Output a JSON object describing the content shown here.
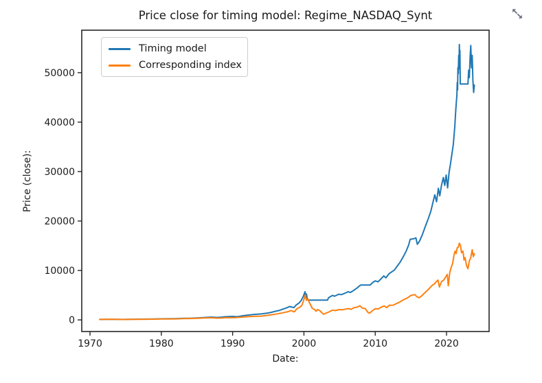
{
  "figure": {
    "title": "Price close for timing model: Regime_NASDAQ_Synt"
  },
  "icons": {
    "expand": "diagonal-resize-arrows"
  },
  "colors": {
    "timing_model": "#1f77b4",
    "corresponding_index": "#ff7f0e",
    "spine": "#262626",
    "text": "#1a1a1a",
    "legend_border": "#cccccc",
    "expand_icon": "#6b7280"
  },
  "chart_data": {
    "type": "line",
    "title": "Price close for timing model: Regime_NASDAQ_Synt",
    "xlabel": "Date:",
    "ylabel": "Price (close):",
    "grid": false,
    "legend_position": "upper left",
    "xlim": [
      1968.84,
      2025.97
    ],
    "ylim": [
      -2350,
      58590
    ],
    "x_ticks": [
      1970,
      1980,
      1990,
      2000,
      2010,
      2020
    ],
    "y_ticks": [
      0,
      10000,
      20000,
      30000,
      40000,
      50000
    ],
    "series": [
      {
        "name": "Timing model",
        "key": "timing-model-line",
        "color": "#1f77b4",
        "x": [
          1971.35,
          1972,
          1972.8,
          1973.5,
          1974.5,
          1975.2,
          1976,
          1977,
          1978,
          1979,
          1980,
          1981,
          1982,
          1983,
          1984,
          1985,
          1986,
          1987,
          1987.8,
          1988.5,
          1989,
          1990,
          1990.7,
          1991.5,
          1992,
          1993,
          1994,
          1995,
          1995.5,
          1996,
          1996.5,
          1997,
          1997.5,
          1998,
          1998.6,
          1998.9,
          1999.3,
          1999.6,
          1999.9,
          2000.05,
          2000.15,
          2000.25,
          2000.35,
          2000.45,
          2000.6,
          2003.3,
          2003.45,
          2003.7,
          2004,
          2004.3,
          2004.6,
          2004.9,
          2005.2,
          2005.5,
          2005.9,
          2006.2,
          2006.5,
          2006.9,
          2007.2,
          2007.5,
          2007.8,
          2008,
          2009.3,
          2009.6,
          2010,
          2010.4,
          2010.8,
          2011.2,
          2011.5,
          2011.9,
          2012.3,
          2012.7,
          2013.1,
          2013.5,
          2013.9,
          2014.3,
          2014.7,
          2014.9,
          2015.4,
          2015.7,
          2015.9,
          2016.2,
          2016.6,
          2017,
          2017.4,
          2017.8,
          2018.1,
          2018.35,
          2018.6,
          2018.85,
          2019.05,
          2019.3,
          2019.55,
          2019.75,
          2019.95,
          2020.15,
          2020.35,
          2020.55,
          2020.75,
          2020.95,
          2021.15,
          2021.3,
          2021.45,
          2021.5,
          2021.55,
          2021.6,
          2021.65,
          2021.7,
          2021.75,
          2021.8,
          2021.85,
          2021.88,
          2021.92,
          2023.0,
          2023.1,
          2023.2,
          2023.3,
          2023.4,
          2023.5,
          2023.6,
          2023.7,
          2023.8,
          2023.9
        ],
        "y": [
          100,
          115,
          125,
          110,
          100,
          115,
          135,
          145,
          165,
          190,
          220,
          235,
          255,
          320,
          335,
          400,
          480,
          570,
          500,
          570,
          650,
          700,
          650,
          850,
          950,
          1100,
          1200,
          1400,
          1550,
          1750,
          1900,
          2150,
          2400,
          2700,
          2500,
          3000,
          3400,
          3900,
          4700,
          5300,
          5700,
          4800,
          5250,
          4450,
          4000,
          4000,
          4450,
          4700,
          4950,
          4800,
          5000,
          5200,
          5100,
          5250,
          5500,
          5700,
          5550,
          5900,
          6200,
          6500,
          6900,
          7060,
          7060,
          7500,
          7900,
          7700,
          8300,
          8900,
          8500,
          9300,
          9700,
          10100,
          10900,
          11700,
          12700,
          13800,
          15200,
          16300,
          16400,
          16600,
          15300,
          15900,
          17200,
          18800,
          20300,
          22000,
          23800,
          25300,
          23900,
          26600,
          25100,
          27300,
          28800,
          27200,
          29300,
          26700,
          29800,
          31500,
          33500,
          35500,
          39000,
          42500,
          45500,
          48000,
          46500,
          51000,
          49800,
          53500,
          51500,
          55700,
          50800,
          54500,
          47700,
          47700,
          50500,
          49000,
          53000,
          55500,
          51000,
          53500,
          48500,
          46000,
          47500
        ]
      },
      {
        "name": "Corresponding index",
        "key": "corresponding-index-line",
        "color": "#ff7f0e",
        "x": [
          1971.35,
          1972,
          1972.9,
          1973.6,
          1974.6,
          1975.2,
          1976,
          1977,
          1978,
          1979,
          1980,
          1981,
          1982,
          1983,
          1984,
          1985,
          1986,
          1987,
          1987.8,
          1988.5,
          1989,
          1990.2,
          1991,
          1991.5,
          1992,
          1993,
          1994,
          1995,
          1995.7,
          1996.3,
          1997,
          1997.7,
          1998.2,
          1998.65,
          1999,
          1999.4,
          1999.7,
          1999.95,
          2000.1,
          2000.2,
          2000.35,
          2000.55,
          2000.75,
          2000.95,
          2001.15,
          2001.45,
          2001.7,
          2001.9,
          2002.2,
          2002.5,
          2002.75,
          2003.05,
          2003.5,
          2004,
          2004.4,
          2004.9,
          2005.4,
          2005.9,
          2006.3,
          2006.6,
          2007,
          2007.5,
          2007.85,
          2008.2,
          2008.6,
          2008.95,
          2009.2,
          2009.6,
          2010,
          2010.4,
          2010.8,
          2011.25,
          2011.6,
          2012,
          2012.5,
          2013,
          2013.5,
          2014,
          2014.5,
          2015,
          2015.55,
          2015.85,
          2016.15,
          2016.55,
          2017,
          2017.5,
          2018,
          2018.3,
          2018.6,
          2018.8,
          2019.0,
          2019.3,
          2019.6,
          2019.9,
          2020.1,
          2020.25,
          2020.45,
          2020.65,
          2020.85,
          2021.05,
          2021.2,
          2021.35,
          2021.5,
          2021.65,
          2021.8,
          2021.95,
          2022.1,
          2022.3,
          2022.45,
          2022.6,
          2022.8,
          2023.0,
          2023.2,
          2023.4,
          2023.6,
          2023.75,
          2023.9
        ],
        "y": [
          100,
          118,
          128,
          105,
          82,
          98,
          112,
          118,
          132,
          152,
          185,
          195,
          200,
          268,
          272,
          325,
          385,
          440,
          355,
          405,
          470,
          440,
          520,
          590,
          640,
          715,
          765,
          940,
          1080,
          1230,
          1420,
          1650,
          1880,
          1620,
          2250,
          2550,
          2900,
          3900,
          4600,
          5050,
          3950,
          4250,
          3550,
          3000,
          2350,
          2150,
          1750,
          2100,
          1900,
          1480,
          1150,
          1340,
          1600,
          1980,
          1880,
          2080,
          2050,
          2200,
          2280,
          2130,
          2450,
          2600,
          2850,
          2380,
          2280,
          1570,
          1340,
          1850,
          2260,
          2220,
          2530,
          2830,
          2480,
          2960,
          2980,
          3320,
          3680,
          4120,
          4420,
          4950,
          5120,
          4680,
          4480,
          4900,
          5560,
          6230,
          7020,
          7250,
          7800,
          8050,
          6650,
          7750,
          8050,
          8750,
          9200,
          6900,
          9550,
          10600,
          11400,
          13100,
          13900,
          13400,
          14600,
          14700,
          15500,
          15100,
          13600,
          13900,
          12100,
          12600,
          11000,
          10350,
          11900,
          12600,
          14200,
          12800,
          13400
        ]
      }
    ]
  }
}
